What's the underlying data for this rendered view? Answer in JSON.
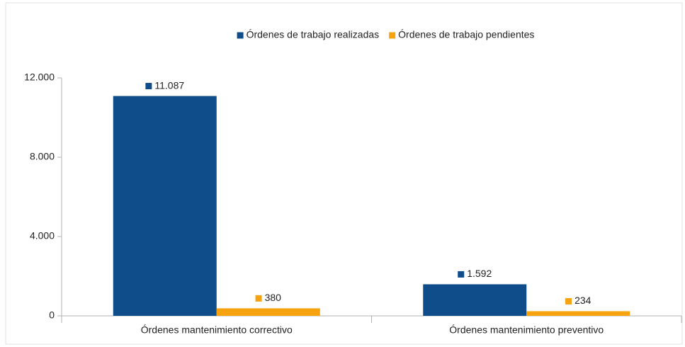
{
  "chart_data": {
    "type": "bar",
    "categories": [
      "Órdenes mantenimiento correctivo",
      "Órdenes mantenimiento preventivo"
    ],
    "series": [
      {
        "name": "Órdenes de trabajo realizadas",
        "color": "#0f4c8a",
        "values": [
          11087,
          1592
        ],
        "value_labels": [
          "11.087",
          "1.592"
        ]
      },
      {
        "name": "Órdenes de trabajo pendientes",
        "color": "#f7a20f",
        "values": [
          380,
          234
        ],
        "value_labels": [
          "380",
          "234"
        ]
      }
    ],
    "ylim": [
      0,
      12000
    ],
    "yticks": [
      0,
      {
        "value": 4000,
        "label": "4.000"
      },
      {
        "value": 8000,
        "label": "8.000"
      },
      {
        "value": 12000,
        "label": "12.000"
      }
    ],
    "legend": "top"
  }
}
